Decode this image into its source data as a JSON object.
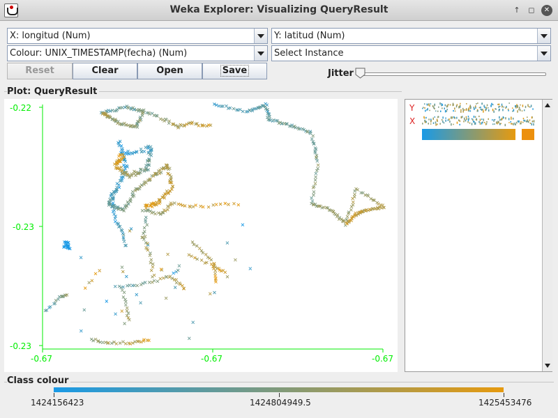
{
  "window": {
    "title": "Weka Explorer: Visualizing QueryResult"
  },
  "controls": {
    "x_axis": "X: longitud (Num)",
    "y_axis": "Y: latitud (Num)",
    "colour": "Colour: UNIX_TIMESTAMP(fecha) (Num)",
    "instance": "Select Instance",
    "buttons": {
      "reset": "Reset",
      "clear": "Clear",
      "open": "Open",
      "save": "Save"
    },
    "jitter_label": "Jitter",
    "jitter_value": 0
  },
  "plot": {
    "group_title": "Plot: QueryResult",
    "y_ticks": [
      "-0.22",
      "-0.23",
      "-0.23"
    ],
    "x_ticks": [
      "-0.67",
      "-0.67",
      "-0.67"
    ],
    "axis_color": "#00ee00"
  },
  "legend": {
    "y_label": "Y",
    "x_label": "X"
  },
  "class_colour": {
    "title": "Class colour",
    "min_label": "1424156423",
    "mid_label": "1424804949.5",
    "max_label": "1425453476",
    "start_color": "#1a9ae6",
    "end_color": "#e69a0f"
  }
}
